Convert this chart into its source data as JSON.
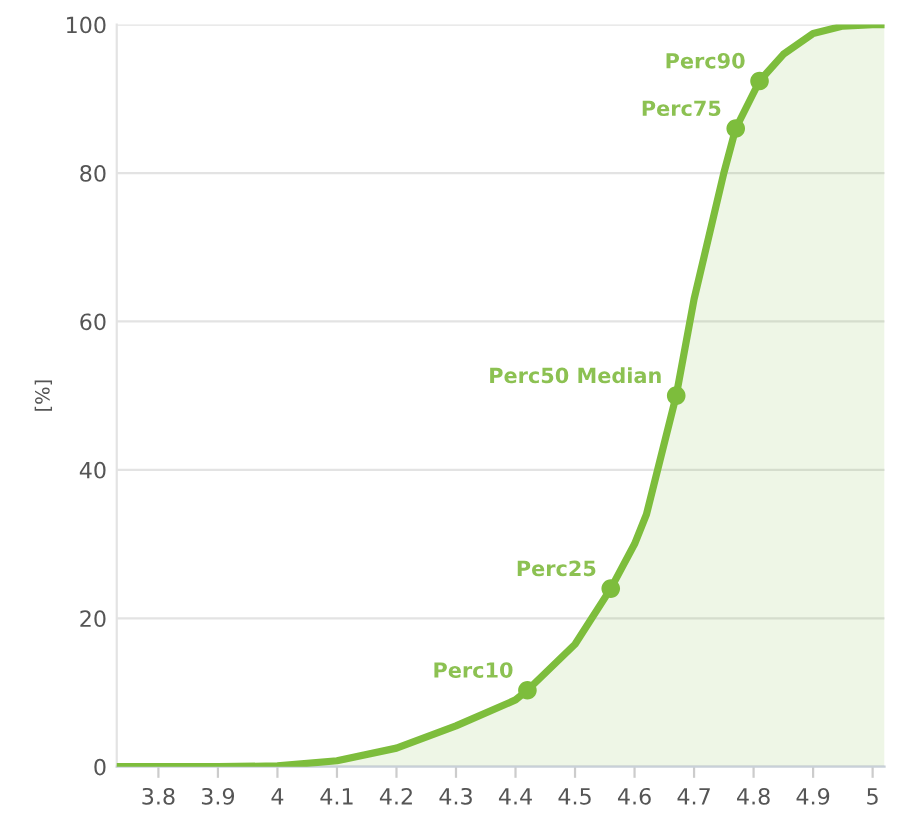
{
  "chart_data": {
    "type": "area",
    "ylabel": "[%]",
    "series": [
      {
        "color": "#7dbd3c",
        "x": [
          3.73,
          3.9,
          4.0,
          4.1,
          4.2,
          4.3,
          4.4,
          4.42,
          4.5,
          4.56,
          4.6,
          4.62,
          4.67,
          4.7,
          4.75,
          4.77,
          4.81,
          4.85,
          4.9,
          4.95,
          5.0,
          5.02
        ],
        "values": [
          0,
          0,
          0.1,
          0.8,
          2.5,
          5.5,
          9,
          10.3,
          16.5,
          24,
          30,
          34,
          50,
          63,
          80,
          86,
          92.4,
          96,
          98.8,
          99.8,
          100,
          100
        ]
      },
      {
        "type": "scatter",
        "color": "#7dbd3c",
        "x": [
          4.42,
          4.56,
          4.67,
          4.77,
          4.81
        ],
        "values": [
          10.3,
          24,
          50,
          86,
          92.4
        ]
      }
    ],
    "annotations": [
      {
        "text": "Perc10",
        "x": 4.42,
        "y": 10.3
      },
      {
        "text": "Perc25",
        "x": 4.56,
        "y": 24
      },
      {
        "text": "Perc50 Median",
        "x": 4.67,
        "y": 50
      },
      {
        "text": "Perc75",
        "x": 4.77,
        "y": 86
      },
      {
        "text": "Perc90",
        "x": 4.81,
        "y": 92.4
      }
    ],
    "xlim": [
      3.73,
      5.02
    ],
    "xticks": [
      3.8,
      3.9,
      4,
      4.1,
      4.2,
      4.3,
      4.4,
      4.5,
      4.6,
      4.7,
      4.8,
      4.9,
      5
    ],
    "ylim": [
      0,
      100
    ],
    "yticks": [
      0,
      20,
      40,
      60,
      80,
      100
    ],
    "grid": "y",
    "line_style": "solid"
  }
}
